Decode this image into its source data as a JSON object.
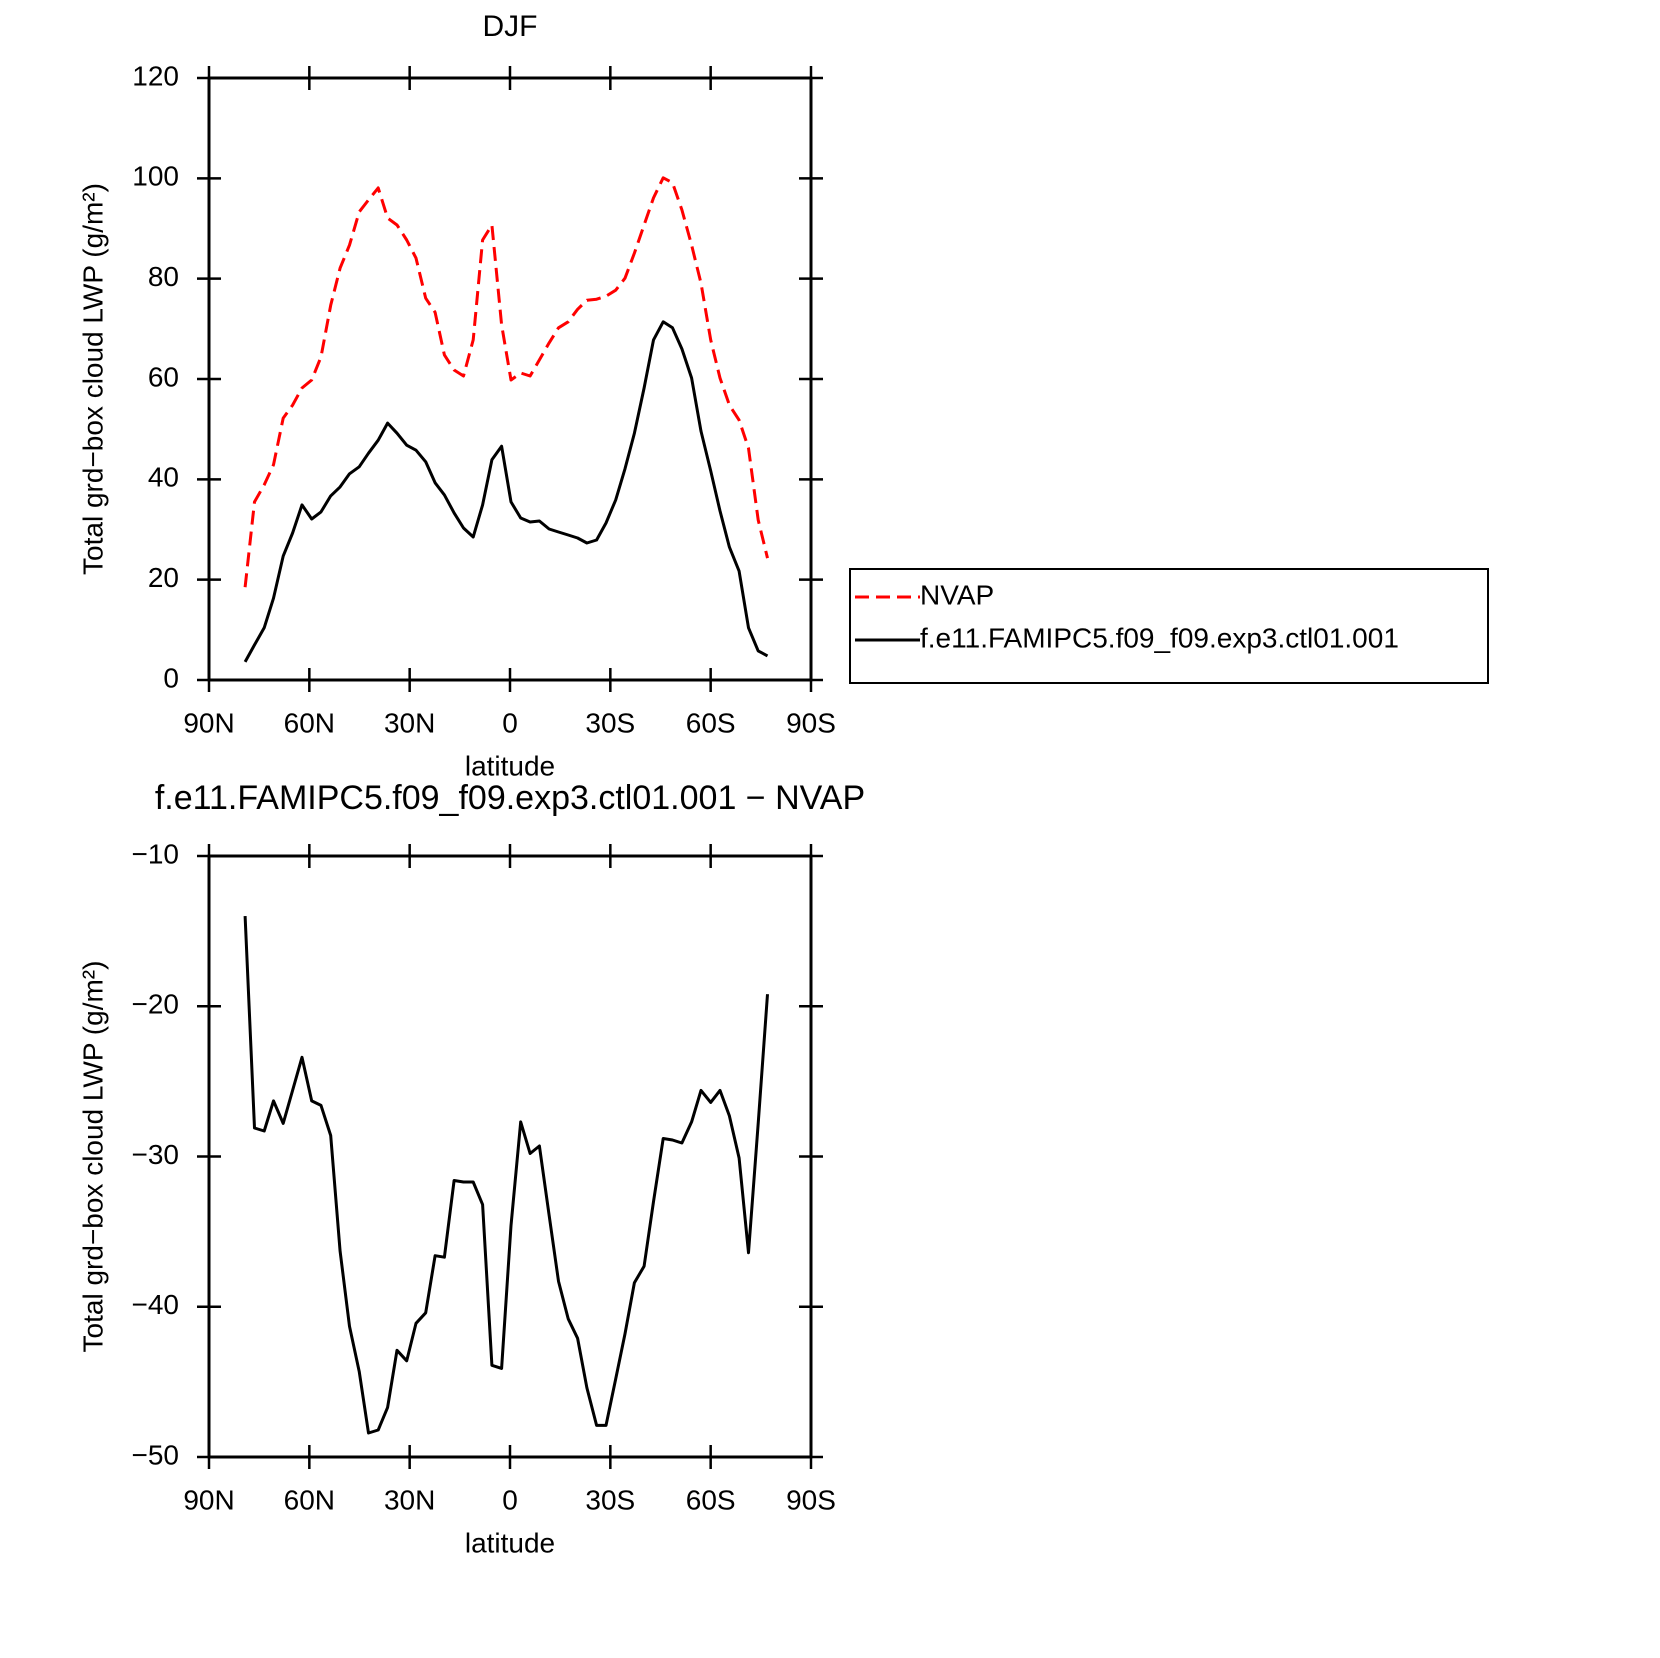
{
  "chart_data": [
    {
      "type": "line",
      "title": "DJF",
      "xlabel": "latitude",
      "ylabel": "Total grd−box cloud LWP (g/m²)",
      "x": [
        79.2,
        76.4,
        73.5,
        70.7,
        67.8,
        65.0,
        62.2,
        59.3,
        56.5,
        53.6,
        50.8,
        48.0,
        45.1,
        42.3,
        39.4,
        36.6,
        33.8,
        30.9,
        28.1,
        25.2,
        22.4,
        19.6,
        16.7,
        13.9,
        11.0,
        8.2,
        5.4,
        2.5,
        -0.3,
        -3.2,
        -6.0,
        -8.8,
        -11.7,
        -14.5,
        -17.4,
        -20.2,
        -23.0,
        -25.9,
        -28.7,
        -31.6,
        -34.4,
        -37.2,
        -40.1,
        -42.9,
        -45.8,
        -48.6,
        -51.4,
        -54.3,
        -57.1,
        -60.0,
        -62.8,
        -65.6,
        -68.5,
        -71.3,
        -74.2,
        -77.0
      ],
      "series": [
        {
          "name": "NVAP",
          "color": "#ff0000",
          "dashed": true,
          "values": [
            18.5,
            35.5,
            38.9,
            42.9,
            52.2,
            54.8,
            58.2,
            59.8,
            64.4,
            74.7,
            82.1,
            86.7,
            93.3,
            95.7,
            98.1,
            92.1,
            90.7,
            87.7,
            84.1,
            76.1,
            73.3,
            64.8,
            61.8,
            60.6,
            67.8,
            87.7,
            90.7,
            70.8,
            59.8,
            61.2,
            60.6,
            63.8,
            67.2,
            70.2,
            71.4,
            73.9,
            75.7,
            75.9,
            76.5,
            77.7,
            80.1,
            85.1,
            90.7,
            96.1,
            100.1,
            99.1,
            93.7,
            86.7,
            79.1,
            67.8,
            60.2,
            54.8,
            51.8,
            46.2,
            31.9,
            24.3
          ]
        },
        {
          "name": "f.e11.FAMIPC5.f09_f09.exp3.ctl01.001",
          "color": "#000000",
          "dashed": false,
          "values": [
            3.6,
            7.0,
            10.4,
            16.3,
            24.7,
            29.3,
            34.9,
            32.1,
            33.5,
            36.7,
            38.5,
            41.1,
            42.5,
            45.2,
            47.8,
            51.2,
            49.2,
            46.8,
            45.8,
            43.5,
            39.3,
            36.9,
            33.3,
            30.3,
            28.5,
            34.9,
            43.9,
            46.6,
            35.5,
            32.3,
            31.5,
            31.7,
            30.1,
            29.5,
            28.9,
            28.3,
            27.3,
            27.9,
            31.3,
            35.9,
            42.1,
            49.2,
            58.2,
            67.8,
            71.4,
            70.2,
            66.0,
            60.2,
            49.6,
            41.7,
            33.7,
            26.5,
            21.7,
            10.4,
            5.8,
            4.8
          ]
        }
      ],
      "xlim": [
        90,
        -90
      ],
      "xticks": [
        {
          "value": 90,
          "label": "90N"
        },
        {
          "value": 60,
          "label": "60N"
        },
        {
          "value": 30,
          "label": "30N"
        },
        0,
        {
          "value": -30,
          "label": "30S"
        },
        {
          "value": -60,
          "label": "60S"
        },
        {
          "value": -90,
          "label": "90S"
        }
      ],
      "ylim": [
        0,
        120
      ],
      "yticks": [
        0,
        20,
        40,
        60,
        80,
        100,
        120
      ],
      "legend": "right"
    },
    {
      "type": "line",
      "title": "f.e11.FAMIPC5.f09_f09.exp3.ctl01.001 − NVAP",
      "xlabel": "latitude",
      "ylabel": "Total grd−box cloud LWP (g/m²)",
      "x": [
        79.2,
        76.4,
        73.5,
        70.7,
        67.8,
        65.0,
        62.2,
        59.3,
        56.5,
        53.6,
        50.8,
        48.0,
        45.1,
        42.3,
        39.4,
        36.6,
        33.8,
        30.9,
        28.1,
        25.2,
        22.4,
        19.6,
        16.7,
        13.9,
        11.0,
        8.2,
        5.4,
        2.5,
        -0.3,
        -3.2,
        -6.0,
        -8.8,
        -11.7,
        -14.5,
        -17.4,
        -20.2,
        -23.0,
        -25.9,
        -28.7,
        -31.6,
        -34.4,
        -37.2,
        -40.1,
        -42.9,
        -45.8,
        -48.6,
        -51.4,
        -54.3,
        -57.1,
        -60.0,
        -62.8,
        -65.6,
        -68.5,
        -71.3,
        -74.2,
        -77.0
      ],
      "values": [
        -14.0,
        -28.1,
        -28.3,
        -26.3,
        -27.8,
        -25.6,
        -23.4,
        -26.3,
        -26.6,
        -28.6,
        -36.3,
        -41.3,
        -44.3,
        -48.4,
        -48.2,
        -46.7,
        -42.9,
        -43.6,
        -41.1,
        -40.4,
        -36.6,
        -36.7,
        -31.6,
        -31.7,
        -31.7,
        -33.2,
        -43.9,
        -44.1,
        -34.6,
        -27.7,
        -29.8,
        -29.3,
        -33.9,
        -38.3,
        -40.8,
        -42.1,
        -45.4,
        -47.9,
        -47.9,
        -44.8,
        -41.8,
        -38.4,
        -37.3,
        -33.0,
        -28.8,
        -28.9,
        -29.1,
        -27.7,
        -25.6,
        -26.4,
        -25.6,
        -27.3,
        -30.1,
        -36.4,
        -27.8,
        -19.2
      ],
      "color": "#000000",
      "xlim": [
        90,
        -90
      ],
      "xticks": [
        {
          "value": 90,
          "label": "90N"
        },
        {
          "value": 60,
          "label": "60N"
        },
        {
          "value": 30,
          "label": "30N"
        },
        0,
        {
          "value": -30,
          "label": "30S"
        },
        {
          "value": -60,
          "label": "60S"
        },
        {
          "value": -90,
          "label": "90S"
        }
      ],
      "ylim": [
        -50,
        -10
      ],
      "yticks": [
        {
          "value": -50,
          "label": "−50"
        },
        {
          "value": -40,
          "label": "−40"
        },
        {
          "value": -30,
          "label": "−30"
        },
        {
          "value": -20,
          "label": "−20"
        },
        {
          "value": -10,
          "label": "−10"
        }
      ]
    }
  ]
}
